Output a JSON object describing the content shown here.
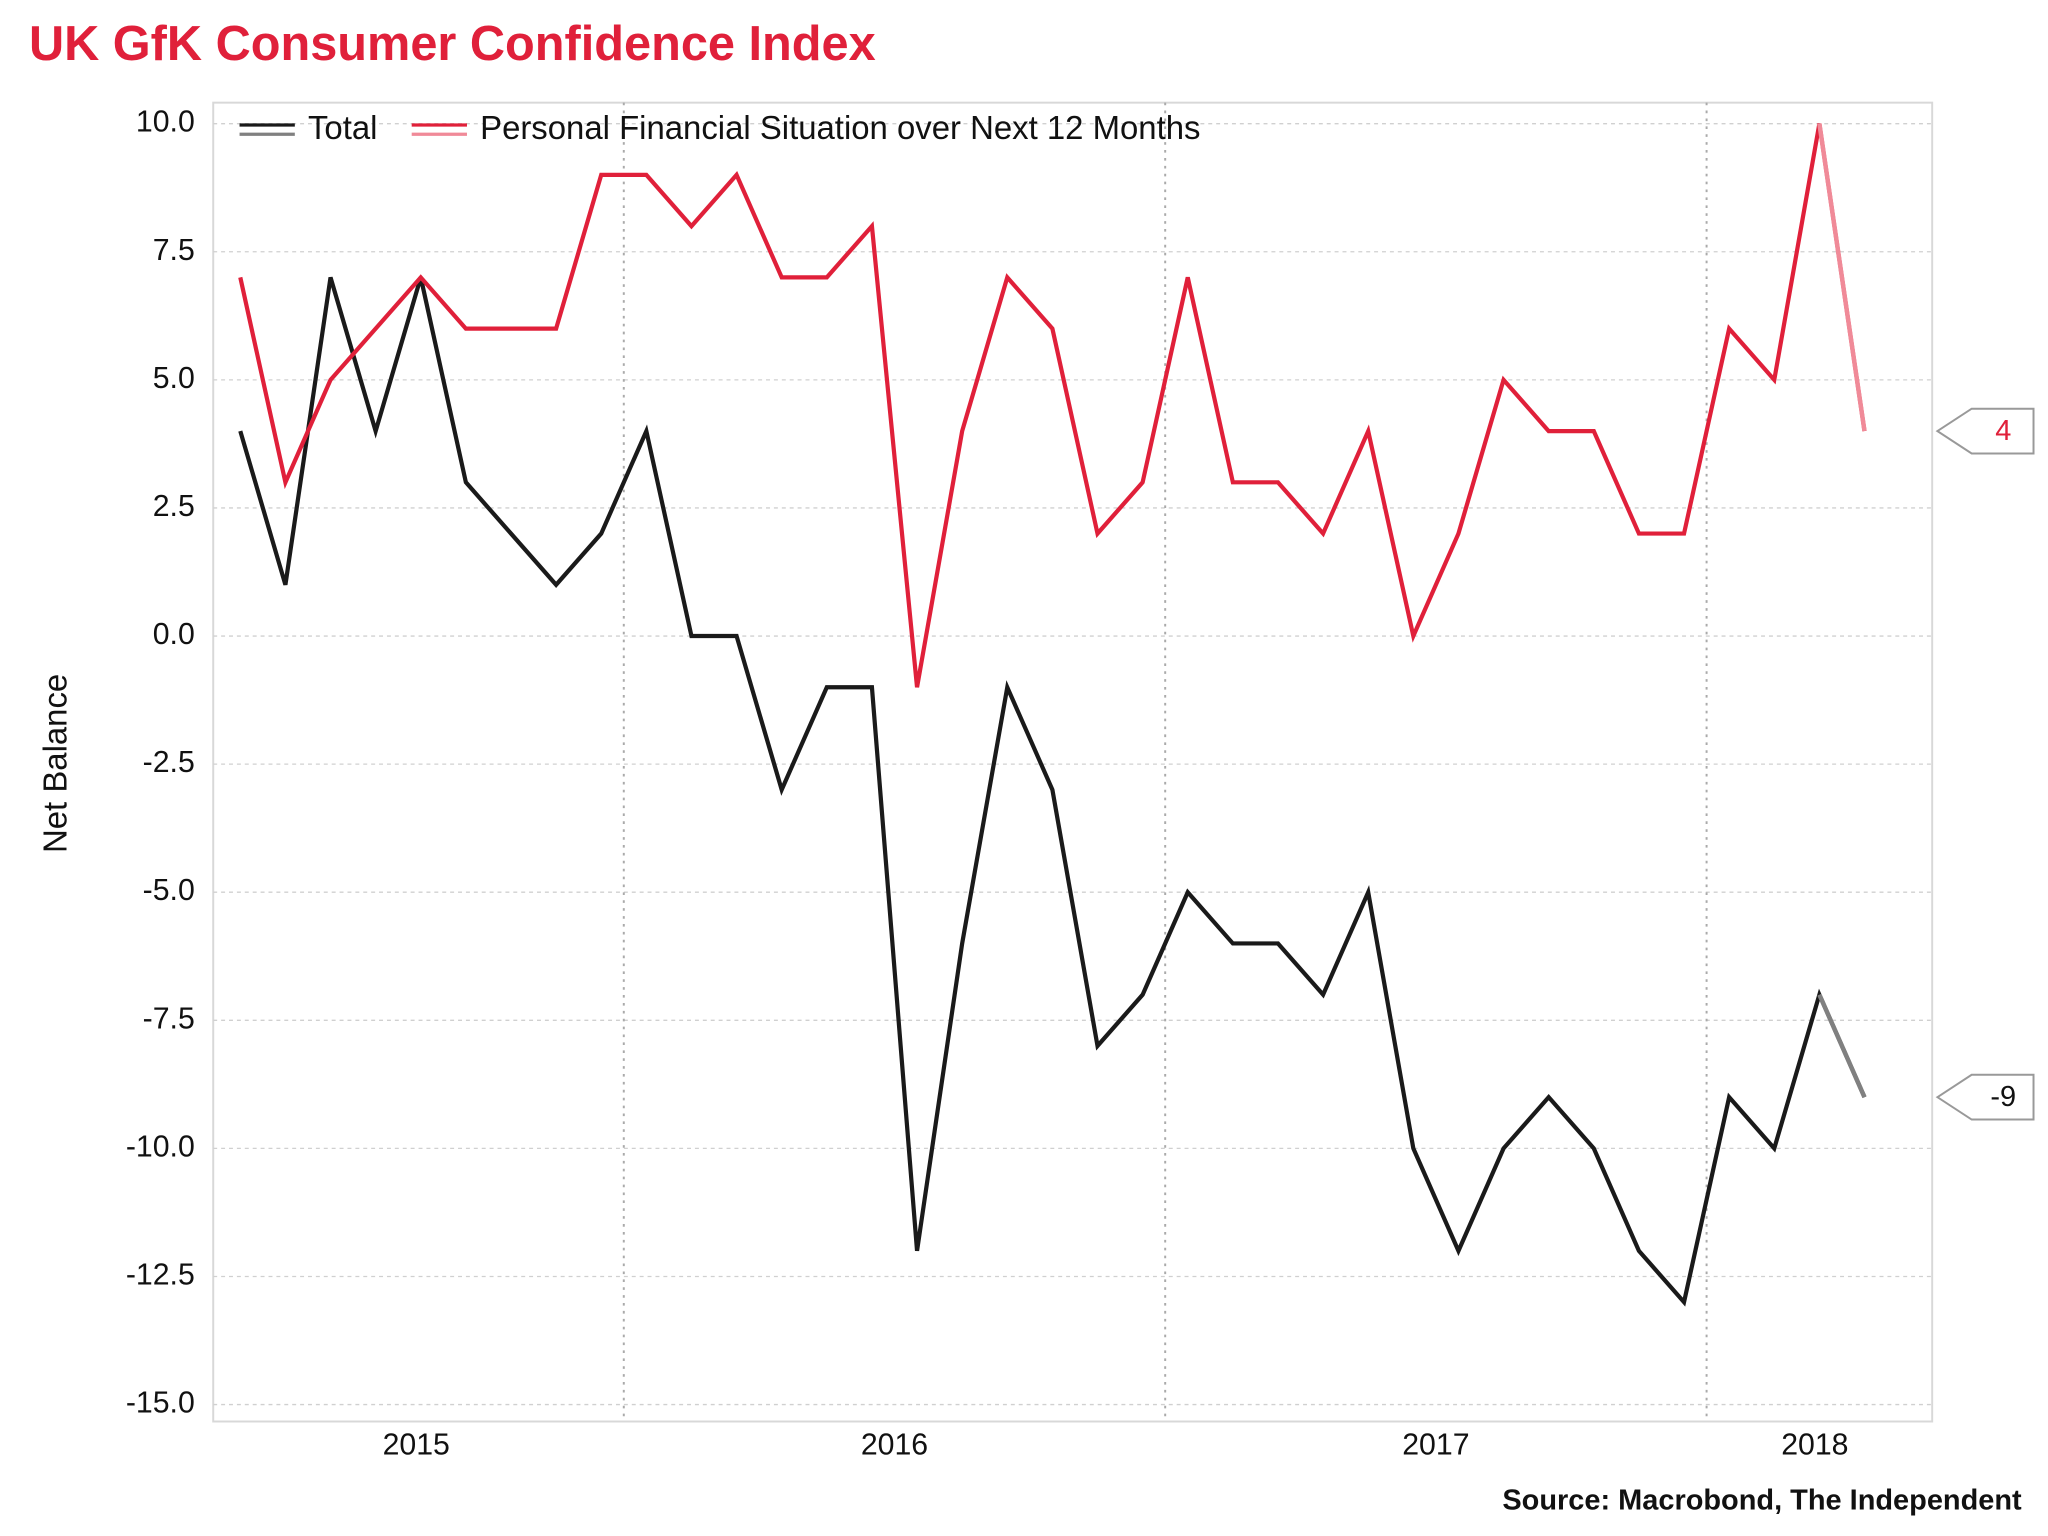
{
  "chart_data": {
    "type": "line",
    "title": "UK GfK Consumer Confidence Index",
    "y_label": "Net Balance",
    "source": "Source: Macrobond, The Independent",
    "categories": [
      null,
      null,
      null,
      null,
      null,
      null,
      null,
      null,
      null,
      null,
      null,
      null,
      null,
      null,
      null,
      null,
      null,
      null,
      null,
      null,
      null,
      null,
      null,
      null,
      null,
      null,
      null,
      null,
      null,
      null,
      null,
      null,
      null,
      null,
      null,
      null,
      null
    ],
    "series": [
      {
        "name": "Total",
        "color": "#1a1a1a",
        "end_color": "#808080",
        "values": [
          4,
          1,
          7,
          4,
          7,
          3,
          2,
          1,
          2,
          4,
          0,
          0,
          -3,
          -1,
          -1,
          -12,
          -6,
          -1,
          -3,
          -8,
          -7,
          -5,
          -6,
          -6,
          -7,
          -5,
          -10,
          -12,
          -10,
          -9,
          -10,
          -12,
          -13,
          -9,
          -10,
          -7,
          -9
        ]
      },
      {
        "name": "Personal Financial Situation over Next 12 Months",
        "color": "#e0203a",
        "end_color": "#f08a98",
        "values": [
          7,
          3,
          5,
          6,
          7,
          6,
          6,
          6,
          9,
          9,
          8,
          9,
          7,
          7,
          8,
          -1,
          4,
          7,
          6,
          2,
          3,
          7,
          3,
          3,
          2,
          4,
          0,
          2,
          5,
          4,
          4,
          2,
          2,
          6,
          5,
          10,
          4
        ]
      }
    ],
    "xlim": [
      -0.6,
      37.5
    ],
    "xticks": [
      {
        "value": 3.9,
        "label": "2015"
      },
      {
        "value": 14.5,
        "label": "2016"
      },
      {
        "value": 26.5,
        "label": "2017"
      },
      {
        "value": 34.9,
        "label": "2018"
      }
    ],
    "xgrid": [
      8.5,
      20.5,
      32.5
    ],
    "ylim": [
      -15.33,
      10.41
    ],
    "yticks": [
      {
        "value": 10,
        "label": "10.0"
      },
      {
        "value": 7.5,
        "label": "7.5"
      },
      {
        "value": 5,
        "label": "5.0"
      },
      {
        "value": 2.5,
        "label": "2.5"
      },
      {
        "value": 0,
        "label": "0.0"
      },
      {
        "value": -2.5,
        "label": "-2.5"
      },
      {
        "value": -5,
        "label": "-5.0"
      },
      {
        "value": -7.5,
        "label": "-7.5"
      },
      {
        "value": -10,
        "label": "-10.0"
      },
      {
        "value": -12.5,
        "label": "-12.5"
      },
      {
        "value": -15,
        "label": "-15.0"
      }
    ],
    "grid": true,
    "legend": "top-left"
  }
}
